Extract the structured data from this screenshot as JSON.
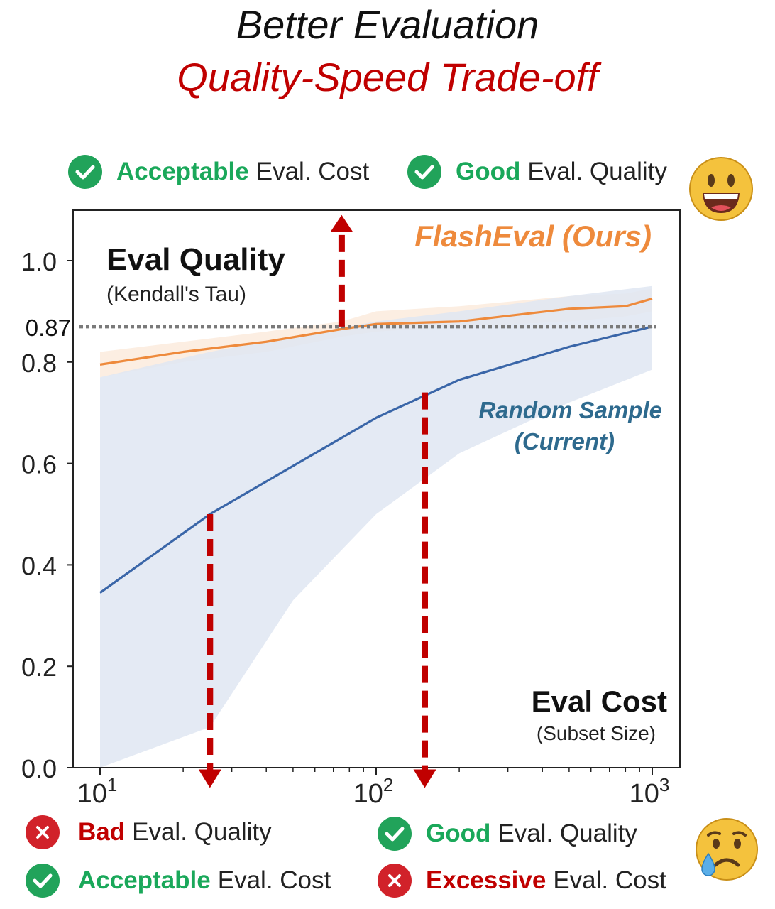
{
  "title": {
    "line1": "Better Evaluation",
    "line2": "Quality-Speed Trade-off"
  },
  "top_status": {
    "cost_keyword": "Acceptable",
    "cost_text": "Eval. Cost",
    "quality_keyword": "Good",
    "quality_text": "Eval. Quality",
    "emoji": "grinning-face"
  },
  "bottom_status": {
    "left_quality_keyword": "Bad",
    "left_quality_text": "Eval. Quality",
    "left_cost_keyword": "Acceptable",
    "left_cost_text": "Eval. Cost",
    "right_quality_keyword": "Good",
    "right_quality_text": "Eval. Quality",
    "right_cost_keyword": "Excessive",
    "right_cost_text": "Eval. Cost",
    "emoji": "crying-face"
  },
  "colors": {
    "good": "#1aa85a",
    "bad": "#c00000",
    "flasheval": "#ee8a3c",
    "random": "#3a66a8",
    "band": "#dfe6f2",
    "arrow": "#c00000"
  },
  "chart_data": {
    "type": "line",
    "x_scale": "log",
    "xlim": [
      10,
      1000
    ],
    "ylim": [
      0.0,
      1.1
    ],
    "x_tick_labels": [
      {
        "value": 10,
        "base": "10",
        "exp": "1"
      },
      {
        "value": 100,
        "base": "10",
        "exp": "2"
      },
      {
        "value": 1000,
        "base": "10",
        "exp": "3"
      }
    ],
    "y_ticks": [
      {
        "value": 0.0,
        "label": "0.0"
      },
      {
        "value": 0.2,
        "label": "0.2"
      },
      {
        "value": 0.4,
        "label": "0.4"
      },
      {
        "value": 0.6,
        "label": "0.6"
      },
      {
        "value": 0.8,
        "label": "0.8"
      },
      {
        "value": 1.0,
        "label": "1.0"
      }
    ],
    "ylabel": "Eval Quality",
    "ylabel_sub": "(Kendall's Tau)",
    "xlabel": "Eval Cost",
    "xlabel_sub": "(Subset Size)",
    "reference": {
      "value": 0.87,
      "label": "0.87"
    },
    "series": [
      {
        "name": "FlashEval (Ours)",
        "x": [
          10,
          20,
          40,
          75,
          100,
          200,
          500,
          800,
          1000
        ],
        "y": [
          0.795,
          0.82,
          0.84,
          0.865,
          0.875,
          0.88,
          0.905,
          0.91,
          0.925
        ],
        "band_upper": [
          0.82,
          0.84,
          0.86,
          0.88,
          0.9,
          0.91,
          0.93,
          0.935,
          0.945
        ],
        "band_lower": [
          0.77,
          0.8,
          0.82,
          0.85,
          0.86,
          0.87,
          0.88,
          0.89,
          0.9
        ]
      },
      {
        "name": "Random Sample (Current)",
        "x": [
          10,
          25,
          50,
          100,
          200,
          500,
          1000
        ],
        "y": [
          0.345,
          0.5,
          0.595,
          0.69,
          0.765,
          0.83,
          0.87
        ],
        "band_upper": [
          0.77,
          0.82,
          0.85,
          0.88,
          0.9,
          0.93,
          0.95
        ],
        "band_lower": [
          0.0,
          0.08,
          0.33,
          0.5,
          0.62,
          0.72,
          0.785
        ]
      }
    ],
    "series_label_lines": [
      "Random Sample",
      "(Current)"
    ],
    "arrows": [
      {
        "x": 75,
        "from": 0.87,
        "to": 1.09,
        "direction": "up"
      },
      {
        "x": 25,
        "from": 0.5,
        "to": -0.04,
        "direction": "down"
      },
      {
        "x": 150,
        "from": 0.74,
        "to": -0.04,
        "direction": "down"
      }
    ]
  }
}
